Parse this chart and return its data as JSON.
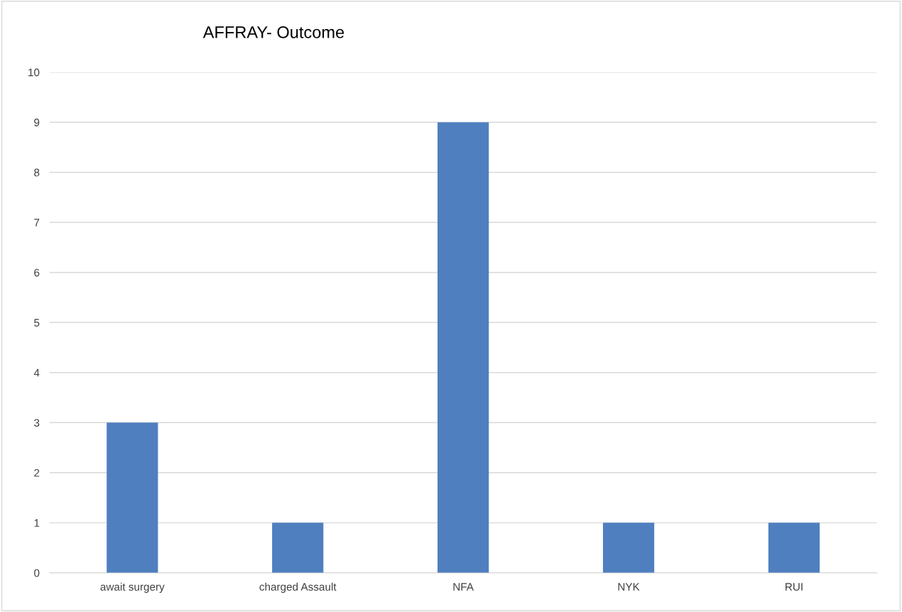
{
  "chart_data": {
    "type": "bar",
    "title": "AFFRAY- Outcome",
    "categories": [
      "await surgery",
      "charged Assault",
      "NFA",
      "NYK",
      "RUI"
    ],
    "values": [
      3,
      1,
      9,
      1,
      1
    ],
    "color": "#4f7fbf",
    "ylim": [
      0,
      10
    ],
    "yticks": [
      0,
      1,
      2,
      3,
      4,
      5,
      6,
      7,
      8,
      9,
      10
    ],
    "grid": "y",
    "legend": false
  }
}
